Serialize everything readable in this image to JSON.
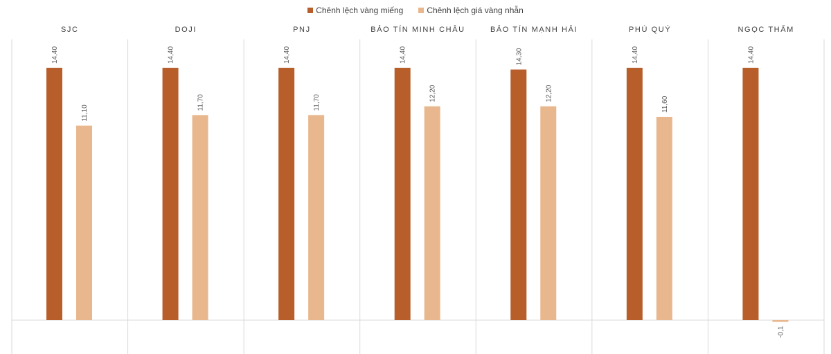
{
  "chart_data": {
    "type": "bar",
    "categories": [
      "SJC",
      "DOJI",
      "PNJ",
      "BẢO TÍN MINH CHÂU",
      "BẢO TÍN MẠNH HẢI",
      "PHÚ QUÝ",
      "NGỌC THẨM"
    ],
    "series": [
      {
        "name": "Chênh lệch vàng miếng",
        "color": "#b85e2a",
        "values": [
          14.4,
          14.4,
          14.4,
          14.4,
          14.3,
          14.4,
          14.4
        ],
        "labels": [
          "14,40",
          "14,40",
          "14,40",
          "14,40",
          "14,30",
          "14,40",
          "14,40"
        ]
      },
      {
        "name": "Chênh lệch giá vàng nhẫn",
        "color": "#e9b78d",
        "values": [
          11.1,
          11.7,
          11.7,
          12.2,
          12.2,
          11.6,
          -0.1
        ],
        "labels": [
          "11,10",
          "11,70",
          "11,70",
          "12,20",
          "12,20",
          "11,60",
          "-0,1"
        ]
      }
    ],
    "ylim": [
      -1.8,
      16.0
    ],
    "grid": false,
    "legend": "top-center"
  }
}
